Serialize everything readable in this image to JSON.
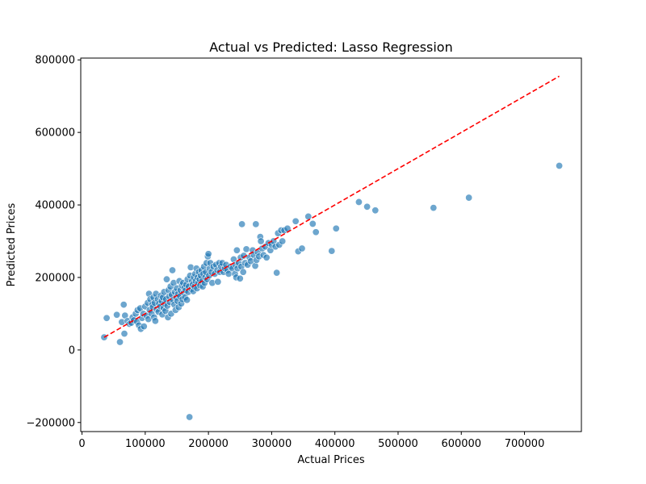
{
  "chart_data": {
    "type": "scatter",
    "title": "Actual vs Predicted: Lasso Regression",
    "xlabel": "Actual Prices",
    "ylabel": "Predicted Prices",
    "xlim": [
      -2000,
      790000
    ],
    "ylim": [
      -225000,
      805000
    ],
    "xticks": [
      0,
      100000,
      200000,
      300000,
      400000,
      500000,
      600000,
      700000
    ],
    "xtick_labels": [
      "0",
      "100000",
      "200000",
      "300000",
      "400000",
      "500000",
      "600000",
      "700000"
    ],
    "yticks": [
      -200000,
      0,
      200000,
      400000,
      600000,
      800000
    ],
    "ytick_labels": [
      "−200000",
      "0",
      "200000",
      "400000",
      "600000",
      "800000"
    ],
    "grid": false,
    "colors": {
      "points": "#1f77b4",
      "reference_line": "#ff0000"
    },
    "reference_line": {
      "style": "dashed",
      "x": [
        35000,
        755000
      ],
      "y": [
        35000,
        755000
      ]
    },
    "points": [
      {
        "x": 35000,
        "y": 35000
      },
      {
        "x": 39000,
        "y": 88000
      },
      {
        "x": 55000,
        "y": 97000
      },
      {
        "x": 60000,
        "y": 22000
      },
      {
        "x": 63000,
        "y": 77000
      },
      {
        "x": 66000,
        "y": 125000
      },
      {
        "x": 67000,
        "y": 45000
      },
      {
        "x": 68000,
        "y": 95000
      },
      {
        "x": 72000,
        "y": 80000
      },
      {
        "x": 75000,
        "y": 72000
      },
      {
        "x": 78000,
        "y": 75000
      },
      {
        "x": 80000,
        "y": 90000
      },
      {
        "x": 82000,
        "y": 82000
      },
      {
        "x": 85000,
        "y": 100000
      },
      {
        "x": 87000,
        "y": 78000
      },
      {
        "x": 88000,
        "y": 110000
      },
      {
        "x": 90000,
        "y": 68000
      },
      {
        "x": 92000,
        "y": 115000
      },
      {
        "x": 93000,
        "y": 58000
      },
      {
        "x": 95000,
        "y": 88000
      },
      {
        "x": 97000,
        "y": 100000
      },
      {
        "x": 98000,
        "y": 65000
      },
      {
        "x": 100000,
        "y": 120000
      },
      {
        "x": 102000,
        "y": 95000
      },
      {
        "x": 104000,
        "y": 130000
      },
      {
        "x": 105000,
        "y": 85000
      },
      {
        "x": 106000,
        "y": 155000
      },
      {
        "x": 107000,
        "y": 110000
      },
      {
        "x": 108000,
        "y": 140000
      },
      {
        "x": 110000,
        "y": 100000
      },
      {
        "x": 111000,
        "y": 125000
      },
      {
        "x": 112000,
        "y": 118000
      },
      {
        "x": 113000,
        "y": 145000
      },
      {
        "x": 114000,
        "y": 90000
      },
      {
        "x": 115000,
        "y": 130000
      },
      {
        "x": 116000,
        "y": 80000
      },
      {
        "x": 117000,
        "y": 155000
      },
      {
        "x": 118000,
        "y": 112000
      },
      {
        "x": 120000,
        "y": 140000
      },
      {
        "x": 121000,
        "y": 105000
      },
      {
        "x": 122000,
        "y": 128000
      },
      {
        "x": 124000,
        "y": 120000
      },
      {
        "x": 125000,
        "y": 150000
      },
      {
        "x": 126000,
        "y": 135000
      },
      {
        "x": 127000,
        "y": 98000
      },
      {
        "x": 128000,
        "y": 145000
      },
      {
        "x": 129000,
        "y": 115000
      },
      {
        "x": 130000,
        "y": 160000
      },
      {
        "x": 131000,
        "y": 128000
      },
      {
        "x": 132000,
        "y": 108000
      },
      {
        "x": 133000,
        "y": 140000
      },
      {
        "x": 134000,
        "y": 195000
      },
      {
        "x": 135000,
        "y": 122000
      },
      {
        "x": 136000,
        "y": 90000
      },
      {
        "x": 137000,
        "y": 165000
      },
      {
        "x": 138000,
        "y": 148000
      },
      {
        "x": 139000,
        "y": 132000
      },
      {
        "x": 140000,
        "y": 175000
      },
      {
        "x": 141000,
        "y": 100000
      },
      {
        "x": 142000,
        "y": 152000
      },
      {
        "x": 143000,
        "y": 220000
      },
      {
        "x": 144000,
        "y": 138000
      },
      {
        "x": 145000,
        "y": 185000
      },
      {
        "x": 146000,
        "y": 125000
      },
      {
        "x": 147000,
        "y": 160000
      },
      {
        "x": 148000,
        "y": 110000
      },
      {
        "x": 149000,
        "y": 145000
      },
      {
        "x": 150000,
        "y": 170000
      },
      {
        "x": 151000,
        "y": 135000
      },
      {
        "x": 152000,
        "y": 155000
      },
      {
        "x": 153000,
        "y": 118000
      },
      {
        "x": 154000,
        "y": 190000
      },
      {
        "x": 155000,
        "y": 148000
      },
      {
        "x": 156000,
        "y": 165000
      },
      {
        "x": 157000,
        "y": 128000
      },
      {
        "x": 158000,
        "y": 178000
      },
      {
        "x": 159000,
        "y": 140000
      },
      {
        "x": 160000,
        "y": 185000
      },
      {
        "x": 161000,
        "y": 158000
      },
      {
        "x": 162000,
        "y": 172000
      },
      {
        "x": 163000,
        "y": 145000
      },
      {
        "x": 164000,
        "y": 165000
      },
      {
        "x": 165000,
        "y": 180000
      },
      {
        "x": 166000,
        "y": 138000
      },
      {
        "x": 167000,
        "y": 195000
      },
      {
        "x": 168000,
        "y": 160000
      },
      {
        "x": 169000,
        "y": 175000
      },
      {
        "x": 170000,
        "y": -185000
      },
      {
        "x": 171000,
        "y": 205000
      },
      {
        "x": 172000,
        "y": 228000
      },
      {
        "x": 173000,
        "y": 168000
      },
      {
        "x": 174000,
        "y": 190000
      },
      {
        "x": 175000,
        "y": 180000
      },
      {
        "x": 176000,
        "y": 162000
      },
      {
        "x": 177000,
        "y": 200000
      },
      {
        "x": 178000,
        "y": 175000
      },
      {
        "x": 179000,
        "y": 210000
      },
      {
        "x": 180000,
        "y": 190000
      },
      {
        "x": 181000,
        "y": 225000
      },
      {
        "x": 182000,
        "y": 170000
      },
      {
        "x": 183000,
        "y": 200000
      },
      {
        "x": 184000,
        "y": 185000
      },
      {
        "x": 185000,
        "y": 215000
      },
      {
        "x": 186000,
        "y": 195000
      },
      {
        "x": 187000,
        "y": 178000
      },
      {
        "x": 188000,
        "y": 205000
      },
      {
        "x": 189000,
        "y": 220000
      },
      {
        "x": 190000,
        "y": 190000
      },
      {
        "x": 191000,
        "y": 175000
      },
      {
        "x": 192000,
        "y": 210000
      },
      {
        "x": 193000,
        "y": 230000
      },
      {
        "x": 194000,
        "y": 185000
      },
      {
        "x": 195000,
        "y": 200000
      },
      {
        "x": 196000,
        "y": 215000
      },
      {
        "x": 197000,
        "y": 240000
      },
      {
        "x": 198000,
        "y": 195000
      },
      {
        "x": 199000,
        "y": 258000
      },
      {
        "x": 200000,
        "y": 265000
      },
      {
        "x": 201000,
        "y": 205000
      },
      {
        "x": 202000,
        "y": 225000
      },
      {
        "x": 203000,
        "y": 240000
      },
      {
        "x": 205000,
        "y": 215000
      },
      {
        "x": 206000,
        "y": 185000
      },
      {
        "x": 208000,
        "y": 230000
      },
      {
        "x": 210000,
        "y": 210000
      },
      {
        "x": 212000,
        "y": 235000
      },
      {
        "x": 214000,
        "y": 220000
      },
      {
        "x": 215000,
        "y": 188000
      },
      {
        "x": 217000,
        "y": 240000
      },
      {
        "x": 218000,
        "y": 215000
      },
      {
        "x": 220000,
        "y": 230000
      },
      {
        "x": 222000,
        "y": 240000
      },
      {
        "x": 224000,
        "y": 215000
      },
      {
        "x": 226000,
        "y": 225000
      },
      {
        "x": 228000,
        "y": 235000
      },
      {
        "x": 230000,
        "y": 220000
      },
      {
        "x": 232000,
        "y": 210000
      },
      {
        "x": 235000,
        "y": 230000
      },
      {
        "x": 238000,
        "y": 225000
      },
      {
        "x": 240000,
        "y": 250000
      },
      {
        "x": 242000,
        "y": 210000
      },
      {
        "x": 243000,
        "y": 235000
      },
      {
        "x": 244000,
        "y": 200000
      },
      {
        "x": 245000,
        "y": 275000
      },
      {
        "x": 246000,
        "y": 225000
      },
      {
        "x": 248000,
        "y": 240000
      },
      {
        "x": 250000,
        "y": 197000
      },
      {
        "x": 251000,
        "y": 255000
      },
      {
        "x": 252000,
        "y": 230000
      },
      {
        "x": 253000,
        "y": 347000
      },
      {
        "x": 255000,
        "y": 215000
      },
      {
        "x": 256000,
        "y": 260000
      },
      {
        "x": 258000,
        "y": 240000
      },
      {
        "x": 260000,
        "y": 278000
      },
      {
        "x": 262000,
        "y": 235000
      },
      {
        "x": 265000,
        "y": 255000
      },
      {
        "x": 267000,
        "y": 245000
      },
      {
        "x": 270000,
        "y": 275000
      },
      {
        "x": 272000,
        "y": 262000
      },
      {
        "x": 274000,
        "y": 232000
      },
      {
        "x": 275000,
        "y": 347000
      },
      {
        "x": 276000,
        "y": 248000
      },
      {
        "x": 278000,
        "y": 270000
      },
      {
        "x": 280000,
        "y": 258000
      },
      {
        "x": 282000,
        "y": 312000
      },
      {
        "x": 283000,
        "y": 300000
      },
      {
        "x": 285000,
        "y": 280000
      },
      {
        "x": 287000,
        "y": 262000
      },
      {
        "x": 290000,
        "y": 285000
      },
      {
        "x": 292000,
        "y": 255000
      },
      {
        "x": 295000,
        "y": 295000
      },
      {
        "x": 298000,
        "y": 275000
      },
      {
        "x": 300000,
        "y": 290000
      },
      {
        "x": 303000,
        "y": 300000
      },
      {
        "x": 306000,
        "y": 285000
      },
      {
        "x": 308000,
        "y": 213000
      },
      {
        "x": 310000,
        "y": 322000
      },
      {
        "x": 312000,
        "y": 290000
      },
      {
        "x": 315000,
        "y": 330000
      },
      {
        "x": 317000,
        "y": 300000
      },
      {
        "x": 320000,
        "y": 330000
      },
      {
        "x": 325000,
        "y": 335000
      },
      {
        "x": 338000,
        "y": 355000
      },
      {
        "x": 342000,
        "y": 272000
      },
      {
        "x": 348000,
        "y": 280000
      },
      {
        "x": 358000,
        "y": 368000
      },
      {
        "x": 365000,
        "y": 348000
      },
      {
        "x": 370000,
        "y": 325000
      },
      {
        "x": 395000,
        "y": 273000
      },
      {
        "x": 402000,
        "y": 335000
      },
      {
        "x": 438000,
        "y": 408000
      },
      {
        "x": 451000,
        "y": 395000
      },
      {
        "x": 464000,
        "y": 385000
      },
      {
        "x": 556000,
        "y": 392000
      },
      {
        "x": 612000,
        "y": 420000
      },
      {
        "x": 755000,
        "y": 508000
      }
    ]
  }
}
